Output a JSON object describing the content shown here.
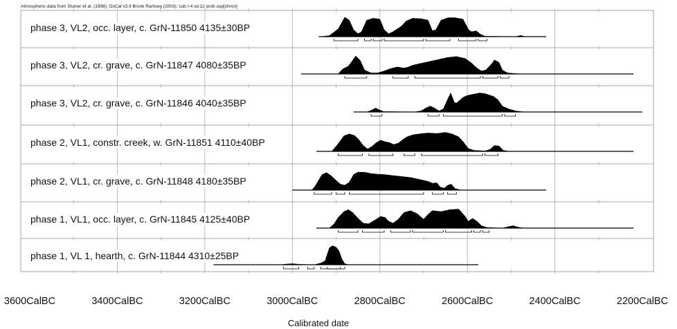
{
  "chart_data": {
    "type": "area",
    "header": "Atmospheric data from Stuiver et al. (1998); OxCal v3.9 Bronk Ramsey (2003); cub r:4 sd:12 prob usp[chron]",
    "xlabel": "Calibrated date",
    "x_axis": {
      "unit": "CalBC",
      "range": [
        3600,
        2200
      ],
      "reversed": true,
      "ticks": [
        "3600CalBC",
        "3400CalBC",
        "3200CalBC",
        "3000CalBC",
        "2800CalBC",
        "2600CalBC",
        "2400CalBC",
        "2200CalBC"
      ],
      "tick_values": [
        3600,
        3400,
        3200,
        3000,
        2800,
        2600,
        2400,
        2200
      ]
    },
    "grid": true,
    "series": [
      {
        "name": "phase 3, VL2, occ. layer, c. GrN-11850  4135±30BP",
        "line": [
          2940,
          2420
        ],
        "profile": [
          [
            2935,
            0
          ],
          [
            2915,
            0.05
          ],
          [
            2895,
            0.4
          ],
          [
            2880,
            1.0
          ],
          [
            2870,
            0.85
          ],
          [
            2860,
            0.35
          ],
          [
            2850,
            0.15
          ],
          [
            2842,
            0.25
          ],
          [
            2830,
            0.85
          ],
          [
            2815,
            0.95
          ],
          [
            2800,
            0.9
          ],
          [
            2790,
            0.35
          ],
          [
            2780,
            0.15
          ],
          [
            2770,
            0.25
          ],
          [
            2750,
            0.55
          ],
          [
            2740,
            0.8
          ],
          [
            2725,
            0.95
          ],
          [
            2705,
            0.92
          ],
          [
            2690,
            0.85
          ],
          [
            2680,
            0.3
          ],
          [
            2672,
            0.35
          ],
          [
            2660,
            0.85
          ],
          [
            2645,
            0.97
          ],
          [
            2630,
            0.98
          ],
          [
            2610,
            0.9
          ],
          [
            2597,
            0.35
          ],
          [
            2590,
            0.25
          ],
          [
            2580,
            0.3
          ],
          [
            2570,
            0.12
          ],
          [
            2560,
            0.02
          ],
          [
            2490,
            0.0
          ],
          [
            2478,
            0.06
          ],
          [
            2468,
            0.0
          ]
        ],
        "ranges": [
          [
            2905,
            2850
          ],
          [
            2835,
            2820
          ],
          [
            2815,
            2795
          ],
          [
            2790,
            2700
          ],
          [
            2695,
            2640
          ],
          [
            2620,
            2580
          ],
          [
            2575,
            2555
          ]
        ]
      },
      {
        "name": "phase 3, VL2, cr. grave, c. GrN-11847  4080±35BP",
        "line": [
          2980,
          2220
        ],
        "profile": [
          [
            2895,
            0
          ],
          [
            2885,
            0.25
          ],
          [
            2872,
            0.4
          ],
          [
            2862,
            0.7
          ],
          [
            2855,
            0.92
          ],
          [
            2845,
            0.7
          ],
          [
            2835,
            0.2
          ],
          [
            2820,
            0.05
          ],
          [
            2805,
            0.05
          ],
          [
            2790,
            0.15
          ],
          [
            2775,
            0.28
          ],
          [
            2760,
            0.36
          ],
          [
            2745,
            0.3
          ],
          [
            2735,
            0.35
          ],
          [
            2725,
            0.45
          ],
          [
            2705,
            0.55
          ],
          [
            2685,
            0.65
          ],
          [
            2665,
            0.75
          ],
          [
            2645,
            0.85
          ],
          [
            2625,
            0.9
          ],
          [
            2605,
            0.8
          ],
          [
            2590,
            0.55
          ],
          [
            2578,
            0.3
          ],
          [
            2568,
            0.15
          ],
          [
            2558,
            0.2
          ],
          [
            2545,
            0.5
          ],
          [
            2538,
            0.72
          ],
          [
            2528,
            0.6
          ],
          [
            2520,
            0.2
          ],
          [
            2508,
            0.05
          ],
          [
            2490,
            0.02
          ],
          [
            2470,
            0.0
          ]
        ],
        "ranges": [
          [
            2880,
            2830
          ],
          [
            2770,
            2735
          ],
          [
            2720,
            2570
          ],
          [
            2565,
            2530
          ],
          [
            2525,
            2505
          ]
        ]
      },
      {
        "name": "phase 3, VL2, cr. grave, c. GrN-11846  4040±35BP",
        "line": [
          2860,
          2200
        ],
        "profile": [
          [
            2830,
            0
          ],
          [
            2820,
            0.08
          ],
          [
            2810,
            0.2
          ],
          [
            2800,
            0.1
          ],
          [
            2792,
            0.02
          ],
          [
            2720,
            0.0
          ],
          [
            2705,
            0.06
          ],
          [
            2695,
            0.2
          ],
          [
            2685,
            0.3
          ],
          [
            2675,
            0.2
          ],
          [
            2665,
            0.05
          ],
          [
            2655,
            0.15
          ],
          [
            2645,
            0.65
          ],
          [
            2638,
            0.98
          ],
          [
            2630,
            0.5
          ],
          [
            2625,
            0.45
          ],
          [
            2610,
            0.75
          ],
          [
            2600,
            0.85
          ],
          [
            2590,
            0.9
          ],
          [
            2572,
            0.98
          ],
          [
            2560,
            0.95
          ],
          [
            2540,
            0.8
          ],
          [
            2530,
            0.62
          ],
          [
            2520,
            0.3
          ],
          [
            2505,
            0.15
          ],
          [
            2490,
            0.05
          ],
          [
            2470,
            0.0
          ]
        ],
        "ranges": [
          [
            2820,
            2795
          ],
          [
            2690,
            2665
          ],
          [
            2655,
            2520
          ],
          [
            2515,
            2490
          ]
        ]
      },
      {
        "name": "phase 2, VL1, constr. creek, w. GrN-11851  4110±40BP",
        "line": [
          2945,
          2220
        ],
        "profile": [
          [
            2910,
            0
          ],
          [
            2902,
            0.2
          ],
          [
            2895,
            0.4
          ],
          [
            2882,
            0.8
          ],
          [
            2870,
            0.9
          ],
          [
            2858,
            0.82
          ],
          [
            2848,
            0.6
          ],
          [
            2838,
            0.3
          ],
          [
            2828,
            0.12
          ],
          [
            2818,
            0.25
          ],
          [
            2808,
            0.45
          ],
          [
            2798,
            0.58
          ],
          [
            2788,
            0.5
          ],
          [
            2778,
            0.45
          ],
          [
            2768,
            0.35
          ],
          [
            2758,
            0.42
          ],
          [
            2748,
            0.6
          ],
          [
            2738,
            0.75
          ],
          [
            2725,
            0.85
          ],
          [
            2710,
            0.9
          ],
          [
            2690,
            0.95
          ],
          [
            2670,
            0.92
          ],
          [
            2650,
            0.98
          ],
          [
            2635,
            0.9
          ],
          [
            2620,
            0.75
          ],
          [
            2608,
            0.45
          ],
          [
            2598,
            0.15
          ],
          [
            2585,
            0.05
          ],
          [
            2560,
            0.02
          ],
          [
            2548,
            0.1
          ],
          [
            2538,
            0.3
          ],
          [
            2528,
            0.28
          ],
          [
            2518,
            0.05
          ],
          [
            2505,
            0.0
          ]
        ],
        "ranges": [
          [
            2895,
            2840
          ],
          [
            2825,
            2770
          ],
          [
            2745,
            2720
          ],
          [
            2705,
            2565
          ],
          [
            2560,
            2530
          ]
        ]
      },
      {
        "name": "phase 2, VL1, cr. grave, c. GrN-11848  4180±35BP",
        "line": [
          3000,
          2420
        ],
        "profile": [
          [
            2955,
            0
          ],
          [
            2948,
            0.2
          ],
          [
            2940,
            0.5
          ],
          [
            2932,
            0.8
          ],
          [
            2922,
            0.9
          ],
          [
            2912,
            0.75
          ],
          [
            2900,
            0.5
          ],
          [
            2890,
            0.3
          ],
          [
            2880,
            0.25
          ],
          [
            2870,
            0.4
          ],
          [
            2860,
            0.8
          ],
          [
            2850,
            0.92
          ],
          [
            2835,
            0.92
          ],
          [
            2820,
            0.85
          ],
          [
            2805,
            0.82
          ],
          [
            2790,
            0.8
          ],
          [
            2770,
            0.75
          ],
          [
            2750,
            0.7
          ],
          [
            2730,
            0.65
          ],
          [
            2710,
            0.55
          ],
          [
            2690,
            0.45
          ],
          [
            2680,
            0.35
          ],
          [
            2670,
            0.38
          ],
          [
            2662,
            0.15
          ],
          [
            2652,
            0.1
          ],
          [
            2645,
            0.25
          ],
          [
            2637,
            0.3
          ],
          [
            2628,
            0.08
          ],
          [
            2615,
            0.0
          ]
        ],
        "ranges": [
          [
            2950,
            2910
          ],
          [
            2900,
            2880
          ],
          [
            2870,
            2700
          ],
          [
            2680,
            2655
          ],
          [
            2645,
            2625
          ]
        ]
      },
      {
        "name": "phase 1, VL1, occ. layer, c. GrN-11845  4125±40BP",
        "line": [
          2945,
          2220
        ],
        "profile": [
          [
            2915,
            0
          ],
          [
            2905,
            0.2
          ],
          [
            2895,
            0.55
          ],
          [
            2882,
            0.85
          ],
          [
            2872,
            0.95
          ],
          [
            2862,
            0.8
          ],
          [
            2850,
            0.5
          ],
          [
            2838,
            0.25
          ],
          [
            2825,
            0.22
          ],
          [
            2812,
            0.4
          ],
          [
            2798,
            0.6
          ],
          [
            2788,
            0.55
          ],
          [
            2780,
            0.35
          ],
          [
            2770,
            0.25
          ],
          [
            2758,
            0.45
          ],
          [
            2745,
            0.8
          ],
          [
            2730,
            0.9
          ],
          [
            2715,
            0.75
          ],
          [
            2700,
            0.45
          ],
          [
            2690,
            0.7
          ],
          [
            2680,
            0.9
          ],
          [
            2660,
            0.85
          ],
          [
            2640,
            0.95
          ],
          [
            2620,
            0.98
          ],
          [
            2605,
            0.6
          ],
          [
            2598,
            0.35
          ],
          [
            2588,
            0.5
          ],
          [
            2578,
            0.35
          ],
          [
            2568,
            0.12
          ],
          [
            2555,
            0.03
          ],
          [
            2520,
            0.0
          ],
          [
            2505,
            0.08
          ],
          [
            2495,
            0.12
          ],
          [
            2485,
            0.05
          ],
          [
            2470,
            0.0
          ]
        ],
        "ranges": [
          [
            2895,
            2850
          ],
          [
            2840,
            2790
          ],
          [
            2775,
            2730
          ],
          [
            2725,
            2655
          ],
          [
            2650,
            2590
          ],
          [
            2585,
            2570
          ],
          [
            2565,
            2550
          ]
        ]
      },
      {
        "name": "phase 1, VL 1, hearth, c. GrN-11844  4310±25BP",
        "line": [
          3180,
          2575
        ],
        "profile": [
          [
            3030,
            0
          ],
          [
            3010,
            0.04
          ],
          [
            3000,
            0.05
          ],
          [
            2985,
            0.02
          ],
          [
            2950,
            0.0
          ],
          [
            2935,
            0.08
          ],
          [
            2925,
            0.2
          ],
          [
            2920,
            0.55
          ],
          [
            2915,
            0.88
          ],
          [
            2908,
            0.98
          ],
          [
            2900,
            0.9
          ],
          [
            2893,
            0.7
          ],
          [
            2887,
            0.3
          ],
          [
            2880,
            0.05
          ],
          [
            2872,
            0.0
          ]
        ],
        "ranges": [
          [
            3020,
            2985
          ],
          [
            2965,
            2950
          ],
          [
            2935,
            2880
          ],
          [
            2920,
            2890
          ]
        ]
      }
    ]
  }
}
